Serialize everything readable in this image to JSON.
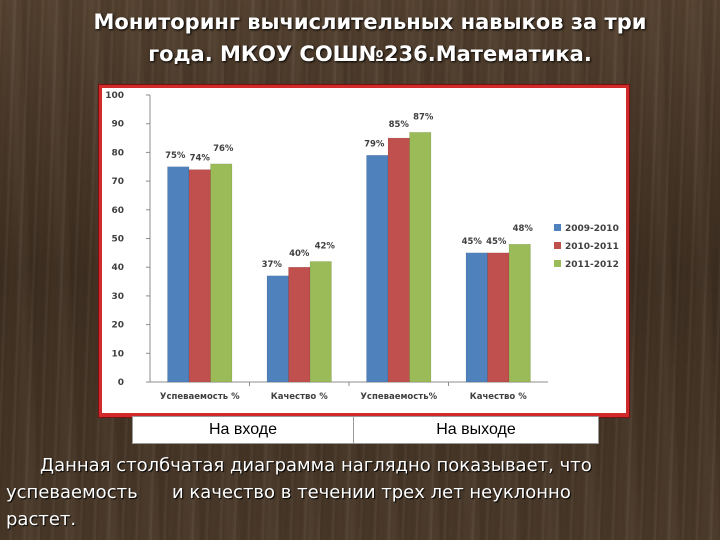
{
  "slide": {
    "title_line1": "Мониторинг вычислительных навыков за три",
    "title_line2": "года. МКОУ СОШ№236.Математика.",
    "caption_left": "На входе",
    "caption_right": "На выходе",
    "body_line1": "Данная столбчатая диаграмма наглядно показывает, что",
    "body_line2": "успеваемость      и качество в течении трех лет неуклонно",
    "body_line3": "растет."
  },
  "chart_data": {
    "type": "bar",
    "categories": [
      "Успеваемость %",
      "Качество %",
      "Успеваемость%",
      "Качество %"
    ],
    "series": [
      {
        "name": "2009-2010",
        "color": "#4f81bd",
        "values": [
          75,
          37,
          79,
          45
        ],
        "labels": [
          "75%",
          "37%",
          "79%",
          "45%"
        ]
      },
      {
        "name": "2010-2011",
        "color": "#c0504d",
        "values": [
          74,
          40,
          85,
          45
        ],
        "labels": [
          "74%",
          "40%",
          "85%",
          "45%"
        ]
      },
      {
        "name": "2011-2012",
        "color": "#9bbb59",
        "values": [
          76,
          42,
          87,
          48
        ],
        "labels": [
          "76%",
          "42%",
          "87%",
          "48%"
        ]
      }
    ],
    "ylim": [
      0,
      100
    ],
    "yticks": [
      0,
      10,
      20,
      30,
      40,
      50,
      60,
      70,
      80,
      90,
      100
    ],
    "grid": false,
    "legend_position": "right"
  }
}
